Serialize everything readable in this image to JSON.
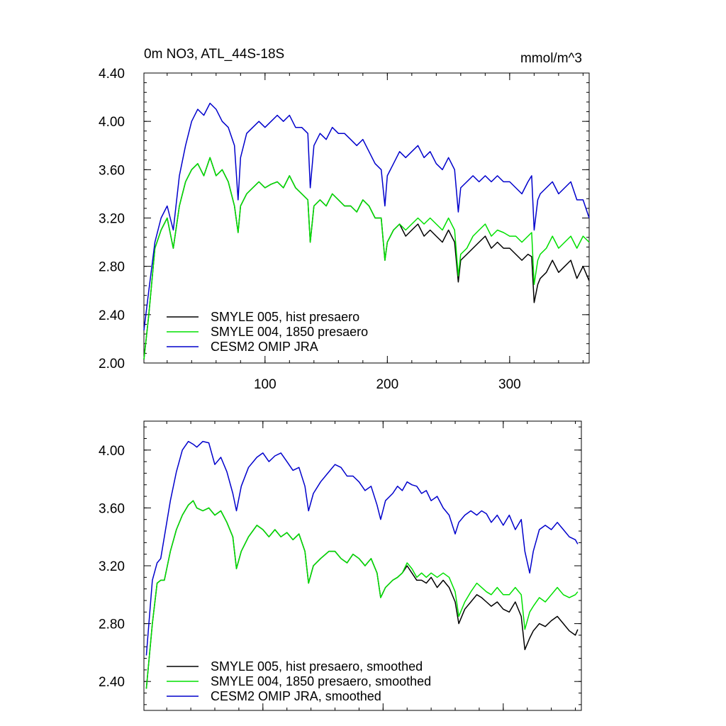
{
  "figure": {
    "title": "0m NO3, ATL_44S-18S",
    "units": "mmol/m^3"
  },
  "chart_data": [
    {
      "type": "line",
      "xlim": [
        1,
        365
      ],
      "ylim": [
        2.0,
        4.4
      ],
      "x_ticks": [
        100,
        200,
        300
      ],
      "x_tick_labels": [
        "100",
        "200",
        "300"
      ],
      "y_ticks": [
        2.0,
        2.4,
        2.8,
        3.2,
        3.6,
        4.0,
        4.4
      ],
      "y_tick_labels": [
        "2.00",
        "2.40",
        "2.80",
        "3.20",
        "3.60",
        "4.00",
        "4.40"
      ],
      "legend_position": "bottom-left",
      "series": [
        {
          "name": "SMYLE 005, hist presaero",
          "color": "#000000",
          "x": [
            1,
            5,
            10,
            15,
            20,
            25,
            30,
            35,
            40,
            45,
            50,
            55,
            60,
            65,
            70,
            75,
            78,
            80,
            85,
            90,
            95,
            100,
            105,
            110,
            115,
            120,
            125,
            130,
            135,
            137,
            140,
            145,
            150,
            155,
            160,
            165,
            170,
            175,
            180,
            185,
            190,
            195,
            198,
            200,
            205,
            210,
            215,
            220,
            225,
            230,
            235,
            240,
            245,
            250,
            255,
            258,
            260,
            265,
            270,
            275,
            280,
            285,
            290,
            295,
            300,
            305,
            310,
            315,
            318,
            320,
            323,
            325,
            330,
            335,
            340,
            345,
            350,
            355,
            360,
            365
          ],
          "y": [
            2.03,
            2.4,
            2.95,
            3.1,
            3.2,
            2.95,
            3.3,
            3.5,
            3.6,
            3.65,
            3.55,
            3.7,
            3.55,
            3.6,
            3.5,
            3.3,
            3.08,
            3.3,
            3.4,
            3.45,
            3.5,
            3.45,
            3.48,
            3.5,
            3.45,
            3.55,
            3.45,
            3.4,
            3.35,
            3.0,
            3.3,
            3.35,
            3.3,
            3.4,
            3.35,
            3.3,
            3.3,
            3.25,
            3.35,
            3.3,
            3.2,
            3.2,
            2.85,
            3.0,
            3.1,
            3.15,
            3.05,
            3.1,
            3.15,
            3.05,
            3.1,
            3.05,
            3.0,
            3.1,
            3.0,
            2.67,
            2.85,
            2.9,
            2.95,
            3.0,
            3.05,
            2.95,
            3.0,
            2.95,
            2.95,
            2.9,
            2.85,
            2.9,
            2.88,
            2.5,
            2.65,
            2.7,
            2.75,
            2.85,
            2.75,
            2.8,
            2.85,
            2.7,
            2.8,
            2.68
          ]
        },
        {
          "name": "SMYLE 004, 1850 presaero",
          "color": "#00e000",
          "x": [
            1,
            5,
            10,
            15,
            20,
            25,
            30,
            35,
            40,
            45,
            50,
            55,
            60,
            65,
            70,
            75,
            78,
            80,
            85,
            90,
            95,
            100,
            105,
            110,
            115,
            120,
            125,
            130,
            135,
            137,
            140,
            145,
            150,
            155,
            160,
            165,
            170,
            175,
            180,
            185,
            190,
            195,
            198,
            200,
            205,
            210,
            215,
            220,
            225,
            230,
            235,
            240,
            245,
            250,
            255,
            258,
            260,
            265,
            270,
            275,
            280,
            285,
            290,
            295,
            300,
            305,
            310,
            315,
            318,
            320,
            323,
            325,
            330,
            335,
            340,
            345,
            350,
            355,
            360,
            365
          ],
          "y": [
            2.03,
            2.4,
            2.95,
            3.1,
            3.2,
            2.95,
            3.3,
            3.5,
            3.6,
            3.65,
            3.55,
            3.7,
            3.55,
            3.6,
            3.5,
            3.3,
            3.08,
            3.3,
            3.4,
            3.45,
            3.5,
            3.45,
            3.48,
            3.5,
            3.45,
            3.55,
            3.45,
            3.4,
            3.35,
            3.0,
            3.3,
            3.35,
            3.3,
            3.4,
            3.35,
            3.3,
            3.3,
            3.25,
            3.35,
            3.3,
            3.2,
            3.2,
            2.85,
            3.0,
            3.1,
            3.15,
            3.1,
            3.15,
            3.2,
            3.15,
            3.2,
            3.15,
            3.1,
            3.2,
            3.1,
            2.72,
            2.9,
            2.95,
            3.05,
            3.1,
            3.15,
            3.05,
            3.1,
            3.08,
            3.05,
            3.05,
            3.0,
            3.05,
            3.08,
            2.65,
            2.85,
            2.9,
            2.95,
            3.05,
            2.95,
            3.0,
            3.05,
            2.95,
            3.05,
            3.0
          ]
        },
        {
          "name": "CESM2 OMIP JRA",
          "color": "#0000cc",
          "x": [
            1,
            5,
            10,
            15,
            20,
            25,
            30,
            35,
            40,
            45,
            50,
            55,
            60,
            65,
            70,
            75,
            78,
            80,
            85,
            90,
            95,
            100,
            105,
            110,
            115,
            120,
            125,
            130,
            135,
            137,
            140,
            145,
            150,
            155,
            160,
            165,
            170,
            175,
            180,
            185,
            190,
            195,
            198,
            200,
            205,
            210,
            215,
            220,
            225,
            230,
            235,
            240,
            245,
            250,
            255,
            258,
            260,
            265,
            270,
            275,
            280,
            285,
            290,
            295,
            300,
            305,
            310,
            315,
            318,
            320,
            323,
            325,
            330,
            335,
            340,
            345,
            350,
            355,
            360,
            365
          ],
          "y": [
            2.27,
            2.6,
            3.0,
            3.2,
            3.3,
            3.1,
            3.55,
            3.8,
            4.0,
            4.1,
            4.05,
            4.15,
            4.1,
            4.0,
            3.95,
            3.8,
            3.35,
            3.7,
            3.9,
            3.95,
            4.0,
            3.95,
            4.0,
            4.05,
            4.0,
            4.05,
            3.95,
            3.95,
            3.9,
            3.45,
            3.8,
            3.9,
            3.85,
            3.95,
            3.9,
            3.9,
            3.85,
            3.8,
            3.85,
            3.75,
            3.65,
            3.6,
            3.3,
            3.55,
            3.65,
            3.75,
            3.7,
            3.75,
            3.8,
            3.7,
            3.75,
            3.65,
            3.6,
            3.7,
            3.6,
            3.25,
            3.45,
            3.5,
            3.55,
            3.5,
            3.55,
            3.5,
            3.55,
            3.5,
            3.5,
            3.45,
            3.4,
            3.5,
            3.55,
            3.1,
            3.35,
            3.4,
            3.45,
            3.5,
            3.4,
            3.45,
            3.5,
            3.35,
            3.35,
            3.2
          ]
        }
      ]
    },
    {
      "type": "line",
      "xlim": [
        1,
        365
      ],
      "ylim": [
        2.2,
        4.2
      ],
      "x_ticks": [
        100,
        200,
        300
      ],
      "x_tick_labels": [],
      "y_ticks": [
        2.4,
        2.8,
        3.2,
        3.6,
        4.0
      ],
      "y_tick_labels": [
        "2.40",
        "2.80",
        "3.20",
        "3.60",
        "4.00"
      ],
      "legend_position": "bottom-left",
      "series": [
        {
          "name": "SMYLE 005, hist presaero, smoothed",
          "color": "#000000",
          "x": [
            3,
            8,
            12,
            15,
            18,
            23,
            28,
            33,
            38,
            42,
            45,
            50,
            55,
            60,
            65,
            70,
            75,
            78,
            82,
            88,
            95,
            100,
            105,
            110,
            115,
            120,
            125,
            130,
            135,
            138,
            142,
            148,
            155,
            160,
            165,
            170,
            175,
            180,
            185,
            190,
            195,
            198,
            202,
            208,
            212,
            216,
            220,
            224,
            228,
            232,
            236,
            240,
            245,
            250,
            255,
            260,
            263,
            268,
            273,
            278,
            282,
            286,
            290,
            295,
            300,
            305,
            310,
            315,
            318,
            322,
            325,
            330,
            335,
            340,
            345,
            350,
            355,
            360,
            362
          ],
          "y": [
            2.35,
            2.8,
            3.08,
            3.1,
            3.1,
            3.3,
            3.45,
            3.55,
            3.62,
            3.65,
            3.6,
            3.58,
            3.6,
            3.55,
            3.58,
            3.5,
            3.4,
            3.18,
            3.3,
            3.4,
            3.48,
            3.45,
            3.4,
            3.45,
            3.4,
            3.43,
            3.38,
            3.42,
            3.3,
            3.08,
            3.2,
            3.25,
            3.3,
            3.3,
            3.25,
            3.22,
            3.28,
            3.25,
            3.2,
            3.25,
            3.15,
            2.98,
            3.05,
            3.1,
            3.12,
            3.15,
            3.2,
            3.15,
            3.1,
            3.1,
            3.08,
            3.12,
            3.05,
            3.1,
            3.05,
            2.95,
            2.8,
            2.9,
            2.95,
            3.0,
            2.98,
            2.95,
            2.92,
            2.95,
            2.9,
            2.88,
            2.95,
            2.85,
            2.62,
            2.7,
            2.75,
            2.8,
            2.78,
            2.82,
            2.85,
            2.8,
            2.75,
            2.72,
            2.76
          ]
        },
        {
          "name": "SMYLE 004, 1850 presaero, smoothed",
          "color": "#00e000",
          "x": [
            3,
            8,
            12,
            15,
            18,
            23,
            28,
            33,
            38,
            42,
            45,
            50,
            55,
            60,
            65,
            70,
            75,
            78,
            82,
            88,
            95,
            100,
            105,
            110,
            115,
            120,
            125,
            130,
            135,
            138,
            142,
            148,
            155,
            160,
            165,
            170,
            175,
            180,
            185,
            190,
            195,
            198,
            202,
            208,
            212,
            216,
            220,
            224,
            228,
            232,
            236,
            240,
            245,
            250,
            255,
            260,
            263,
            268,
            273,
            278,
            282,
            286,
            290,
            295,
            300,
            305,
            310,
            315,
            318,
            322,
            325,
            330,
            335,
            340,
            345,
            350,
            355,
            360,
            362
          ],
          "y": [
            2.35,
            2.8,
            3.08,
            3.1,
            3.1,
            3.3,
            3.45,
            3.55,
            3.62,
            3.65,
            3.6,
            3.58,
            3.6,
            3.55,
            3.58,
            3.5,
            3.4,
            3.18,
            3.3,
            3.4,
            3.48,
            3.45,
            3.4,
            3.45,
            3.4,
            3.43,
            3.38,
            3.42,
            3.3,
            3.08,
            3.2,
            3.25,
            3.3,
            3.3,
            3.25,
            3.22,
            3.28,
            3.25,
            3.2,
            3.25,
            3.15,
            2.98,
            3.05,
            3.1,
            3.12,
            3.15,
            3.22,
            3.18,
            3.12,
            3.15,
            3.12,
            3.15,
            3.12,
            3.15,
            3.12,
            3.02,
            2.85,
            2.95,
            3.02,
            3.08,
            3.05,
            3.02,
            3.0,
            3.05,
            3.0,
            3.0,
            3.05,
            3.0,
            2.76,
            2.88,
            2.92,
            2.98,
            2.95,
            3.0,
            3.05,
            3.0,
            2.98,
            3.0,
            3.02
          ]
        },
        {
          "name": "CESM2 OMIP JRA, smoothed",
          "color": "#0000cc",
          "x": [
            3,
            8,
            12,
            15,
            18,
            23,
            28,
            33,
            38,
            42,
            45,
            50,
            55,
            60,
            65,
            70,
            75,
            78,
            82,
            88,
            95,
            100,
            105,
            110,
            115,
            120,
            125,
            130,
            135,
            138,
            142,
            148,
            155,
            160,
            165,
            170,
            175,
            180,
            185,
            190,
            195,
            198,
            202,
            208,
            212,
            216,
            220,
            224,
            228,
            232,
            236,
            240,
            245,
            250,
            255,
            260,
            263,
            268,
            273,
            278,
            282,
            286,
            290,
            295,
            300,
            305,
            310,
            315,
            318,
            322,
            325,
            330,
            335,
            340,
            345,
            350,
            355,
            360,
            362
          ],
          "y": [
            2.58,
            3.1,
            3.22,
            3.25,
            3.4,
            3.65,
            3.85,
            4.0,
            4.06,
            4.04,
            4.02,
            4.06,
            4.05,
            3.9,
            3.95,
            3.85,
            3.7,
            3.58,
            3.75,
            3.88,
            3.95,
            3.98,
            3.92,
            3.96,
            3.98,
            3.92,
            3.86,
            3.88,
            3.75,
            3.58,
            3.7,
            3.78,
            3.85,
            3.9,
            3.88,
            3.82,
            3.82,
            3.78,
            3.72,
            3.75,
            3.62,
            3.52,
            3.65,
            3.7,
            3.75,
            3.72,
            3.78,
            3.76,
            3.75,
            3.7,
            3.72,
            3.65,
            3.68,
            3.6,
            3.55,
            3.42,
            3.5,
            3.55,
            3.58,
            3.55,
            3.58,
            3.56,
            3.5,
            3.55,
            3.48,
            3.55,
            3.45,
            3.52,
            3.3,
            3.15,
            3.3,
            3.45,
            3.48,
            3.45,
            3.5,
            3.45,
            3.4,
            3.38,
            3.35
          ]
        }
      ]
    }
  ]
}
